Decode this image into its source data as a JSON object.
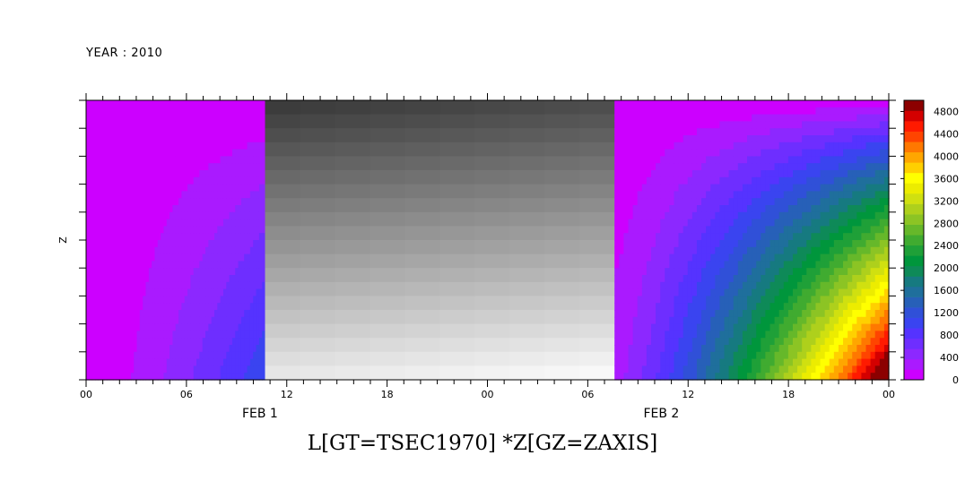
{
  "header": {
    "year_label": "YEAR : 2010"
  },
  "chart_data": {
    "type": "heatmap",
    "title": "L[GT=TSEC1970] *Z[GZ=ZAXIS]",
    "xlabel": "",
    "ylabel": "Z",
    "x_tick_labels": [
      "00",
      "06",
      "12",
      "18",
      "00",
      "06",
      "12",
      "18",
      "00"
    ],
    "x_day_labels": [
      "FEB  1",
      "FEB  2"
    ],
    "colorbar": {
      "tick_labels": [
        "4800",
        "4400",
        "4000",
        "3600",
        "3200",
        "2800",
        "2400",
        "2000",
        "1600",
        "1200",
        "800",
        "400",
        "0"
      ],
      "range": [
        0,
        5000
      ],
      "levels": 25,
      "colors": [
        "#cc00ff",
        "#aa1aff",
        "#8c28ff",
        "#6e2eff",
        "#5533ff",
        "#3a44f0",
        "#3050d8",
        "#2760b8",
        "#1f6f9c",
        "#167a80",
        "#0e8a58",
        "#00963c",
        "#1fa038",
        "#40ab30",
        "#66b82a",
        "#8cc424",
        "#aed01c",
        "#d0e010",
        "#ecec00",
        "#ffff00",
        "#ffd000",
        "#ffa600",
        "#ff7800",
        "#ff4400",
        "#ff1a00",
        "#d40000",
        "#8c0000"
      ]
    },
    "sections": [
      {
        "palette": "colored",
        "x_start_hours": 0,
        "x_end_hours": 10.7,
        "value_range": [
          0,
          1100
        ]
      },
      {
        "palette": "grayscale",
        "x_start_hours": 10.7,
        "x_end_hours": 31.6
      },
      {
        "palette": "colored",
        "x_start_hours": 31.6,
        "x_end_hours": 48,
        "value_range": [
          0,
          5000
        ]
      }
    ],
    "x_range_hours": [
      0,
      48
    ]
  }
}
